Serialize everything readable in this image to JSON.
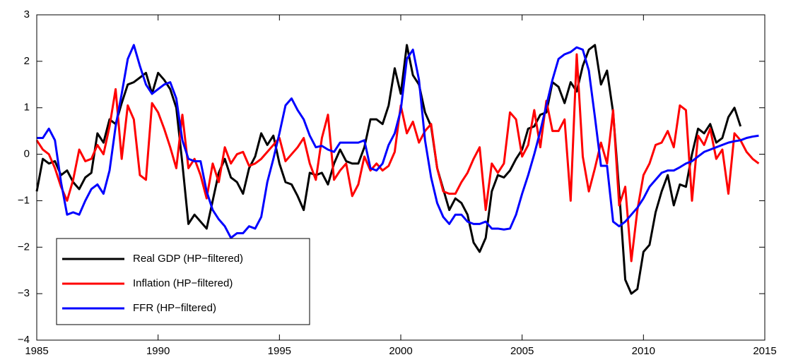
{
  "chart_data": {
    "type": "line",
    "x": [
      1985,
      1985.25,
      1985.5,
      1985.75,
      1986,
      1986.25,
      1986.5,
      1986.75,
      1987,
      1987.25,
      1987.5,
      1987.75,
      1988,
      1988.25,
      1988.5,
      1988.75,
      1989,
      1989.25,
      1989.5,
      1989.75,
      1990,
      1990.25,
      1990.5,
      1990.75,
      1991,
      1991.25,
      1991.5,
      1991.75,
      1992,
      1992.25,
      1992.5,
      1992.75,
      1993,
      1993.25,
      1993.5,
      1993.75,
      1994,
      1994.25,
      1994.5,
      1994.75,
      1995,
      1995.25,
      1995.5,
      1995.75,
      1996,
      1996.25,
      1996.5,
      1996.75,
      1997,
      1997.25,
      1997.5,
      1997.75,
      1998,
      1998.25,
      1998.5,
      1998.75,
      1999,
      1999.25,
      1999.5,
      1999.75,
      2000,
      2000.25,
      2000.5,
      2000.75,
      2001,
      2001.25,
      2001.5,
      2001.75,
      2002,
      2002.25,
      2002.5,
      2002.75,
      2003,
      2003.25,
      2003.5,
      2003.75,
      2004,
      2004.25,
      2004.5,
      2004.75,
      2005,
      2005.25,
      2005.5,
      2005.75,
      2006,
      2006.25,
      2006.5,
      2006.75,
      2007,
      2007.25,
      2007.5,
      2007.75,
      2008,
      2008.25,
      2008.5,
      2008.75,
      2009,
      2009.25,
      2009.5,
      2009.75,
      2010,
      2010.25,
      2010.5,
      2010.75,
      2011,
      2011.25,
      2011.5,
      2011.75,
      2012,
      2012.25,
      2012.5,
      2012.75,
      2013,
      2013.25,
      2013.5,
      2013.75,
      2014,
      2014.25,
      2014.5,
      2014.75
    ],
    "series": [
      {
        "name": "Real GDP (HP−filtered)",
        "color": "#000000",
        "values": [
          -0.8,
          -0.1,
          -0.2,
          -0.15,
          -0.45,
          -0.35,
          -0.6,
          -0.75,
          -0.5,
          -0.4,
          0.45,
          0.25,
          0.75,
          0.65,
          1.1,
          1.5,
          1.55,
          1.65,
          1.75,
          1.3,
          1.75,
          1.6,
          1.4,
          1.0,
          -0.2,
          -1.5,
          -1.3,
          -1.45,
          -1.6,
          -1.0,
          -0.4,
          -0.1,
          -0.5,
          -0.6,
          -0.85,
          -0.3,
          -0.05,
          0.45,
          0.2,
          0.4,
          -0.2,
          -0.6,
          -0.65,
          -0.9,
          -1.2,
          -0.4,
          -0.45,
          -0.4,
          -0.65,
          -0.2,
          0.1,
          -0.15,
          -0.2,
          -0.2,
          0.15,
          0.75,
          0.75,
          0.65,
          1.05,
          1.85,
          1.3,
          2.35,
          1.7,
          1.5,
          0.9,
          0.6,
          -0.3,
          -0.75,
          -1.2,
          -0.95,
          -1.05,
          -1.3,
          -1.9,
          -2.1,
          -1.8,
          -0.8,
          -0.45,
          -0.5,
          -0.35,
          -0.1,
          0.1,
          0.55,
          0.6,
          0.85,
          0.9,
          1.55,
          1.45,
          1.1,
          1.55,
          1.35,
          1.9,
          2.25,
          2.35,
          1.5,
          1.8,
          0.9,
          -0.8,
          -2.7,
          -3.0,
          -2.9,
          -2.1,
          -1.95,
          -1.25,
          -0.8,
          -0.45,
          -1.1,
          -0.65,
          -0.7,
          0.0,
          0.55,
          0.45,
          0.65,
          0.25,
          0.35,
          0.8,
          1.0,
          0.6,
          null,
          null,
          null
        ]
      },
      {
        "name": "Inflation (HP−filtered)",
        "color": "#ff0000",
        "values": [
          0.3,
          0.1,
          0.0,
          -0.3,
          -0.7,
          -1.0,
          -0.55,
          0.1,
          -0.15,
          -0.1,
          0.2,
          0.0,
          0.6,
          1.4,
          -0.1,
          1.05,
          0.75,
          -0.45,
          -0.55,
          1.1,
          0.9,
          0.55,
          0.15,
          -0.3,
          0.85,
          -0.3,
          -0.1,
          -0.45,
          -0.95,
          -0.2,
          -0.6,
          0.15,
          -0.2,
          0.0,
          0.05,
          -0.25,
          -0.2,
          -0.1,
          0.05,
          0.2,
          0.35,
          -0.15,
          0.0,
          0.15,
          0.35,
          -0.2,
          -0.55,
          0.35,
          0.85,
          -0.55,
          -0.35,
          -0.2,
          -0.9,
          -0.65,
          -0.05,
          -0.35,
          -0.2,
          -0.35,
          -0.25,
          0.05,
          1.05,
          0.45,
          0.7,
          0.25,
          0.5,
          0.65,
          -0.3,
          -0.8,
          -0.85,
          -0.85,
          -0.6,
          -0.4,
          -0.1,
          0.15,
          -1.2,
          -0.2,
          -0.4,
          -0.2,
          0.9,
          0.75,
          -0.05,
          0.2,
          0.95,
          0.15,
          1.15,
          0.5,
          0.5,
          0.75,
          -1.0,
          2.15,
          -0.05,
          -0.8,
          -0.3,
          0.25,
          -0.2,
          0.95,
          -1.1,
          -0.7,
          -2.3,
          -1.2,
          -0.45,
          -0.2,
          0.2,
          0.25,
          0.5,
          0.15,
          1.05,
          0.95,
          -1.0,
          0.4,
          0.2,
          0.55,
          -0.1,
          0.1,
          -0.85,
          0.45,
          0.3,
          0.05,
          -0.1,
          -0.2
        ]
      },
      {
        "name": "FFR (HP−filtered)",
        "color": "#0000ff",
        "values": [
          0.35,
          0.35,
          0.55,
          0.3,
          -0.6,
          -1.3,
          -1.25,
          -1.3,
          -1.0,
          -0.75,
          -0.65,
          -0.85,
          -0.35,
          0.6,
          1.3,
          2.05,
          2.35,
          1.9,
          1.5,
          1.3,
          1.4,
          1.5,
          1.55,
          1.2,
          0.3,
          -0.1,
          -0.15,
          -0.15,
          -0.8,
          -1.2,
          -1.4,
          -1.55,
          -1.8,
          -1.7,
          -1.7,
          -1.55,
          -1.6,
          -1.35,
          -0.6,
          -0.1,
          0.45,
          1.05,
          1.2,
          0.95,
          0.75,
          0.4,
          0.15,
          0.18,
          0.1,
          0.05,
          0.25,
          0.25,
          0.25,
          0.25,
          0.3,
          -0.3,
          -0.35,
          -0.2,
          0.2,
          0.45,
          0.95,
          2.05,
          2.25,
          1.6,
          0.3,
          -0.5,
          -1.05,
          -1.35,
          -1.5,
          -1.3,
          -1.3,
          -1.45,
          -1.5,
          -1.5,
          -1.45,
          -1.6,
          -1.6,
          -1.62,
          -1.6,
          -1.3,
          -0.85,
          -0.45,
          0.0,
          0.5,
          1.05,
          1.6,
          2.05,
          2.15,
          2.2,
          2.3,
          2.25,
          1.8,
          0.8,
          -0.25,
          -0.25,
          -1.45,
          -1.55,
          -1.45,
          -1.3,
          -1.15,
          -0.95,
          -0.7,
          -0.55,
          -0.4,
          -0.35,
          -0.35,
          -0.28,
          -0.2,
          -0.15,
          -0.05,
          0.05,
          0.1,
          0.15,
          0.2,
          0.25,
          0.28,
          0.3,
          0.35,
          0.38,
          0.4
        ]
      }
    ],
    "xlim": [
      1985,
      2015
    ],
    "xticks": [
      1985,
      1990,
      1995,
      2000,
      2005,
      2010,
      2015
    ],
    "ylim": [
      -4,
      3
    ],
    "yticks": [
      {
        "value": -4,
        "label": "−4"
      },
      {
        "value": -3,
        "label": "−3"
      },
      {
        "value": -2,
        "label": "−2"
      },
      {
        "value": -1,
        "label": "−1"
      },
      0,
      1,
      2,
      3
    ],
    "grid": false,
    "legend": "lower-left"
  }
}
